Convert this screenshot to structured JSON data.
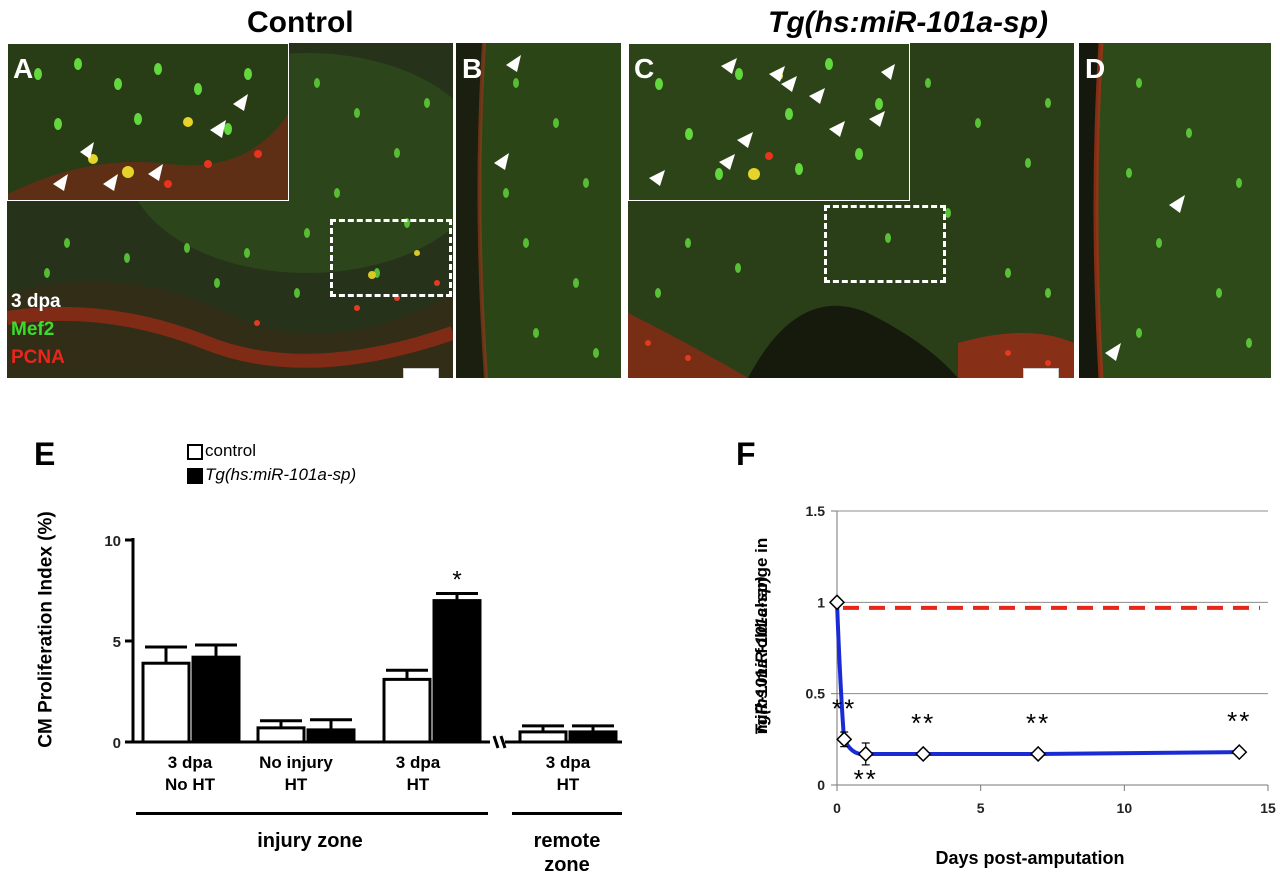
{
  "headings": {
    "control": "Control",
    "transgenic": "Tg(hs:miR-101a-sp)"
  },
  "panel_labels": {
    "a": "A",
    "b": "B",
    "c": "C",
    "d": "D",
    "e": "E",
    "f": "F"
  },
  "stain_legend": {
    "time": "3 dpa",
    "marker1": "Mef2",
    "marker2": "PCNA",
    "marker1_color": "#3ddc2c",
    "marker2_color": "#e8261c"
  },
  "chart_data": [
    {
      "type": "bar",
      "ylabel": "CM Proliferation Index (%)",
      "ylim": [
        0,
        10
      ],
      "yticks": [
        "0",
        "5",
        "10"
      ],
      "categories": [
        "3 dpa No HT",
        "No injury HT",
        "3 dpa HT",
        "3 dpa HT"
      ],
      "category_lines": [
        [
          "3 dpa",
          "No HT"
        ],
        [
          "No injury",
          "HT"
        ],
        [
          "3 dpa",
          "HT"
        ],
        [
          "3 dpa",
          "HT"
        ]
      ],
      "series": [
        {
          "name": "control",
          "values": [
            3.9,
            0.7,
            3.1,
            0.5
          ],
          "errors": [
            0.8,
            0.35,
            0.45,
            0.3
          ],
          "fill": "#ffffff"
        },
        {
          "name": "Tg(hs:miR-101a-sp)",
          "values": [
            4.2,
            0.6,
            7.0,
            0.5
          ],
          "errors": [
            0.6,
            0.5,
            0.35,
            0.3
          ],
          "fill": "#000000"
        }
      ],
      "significance": [
        "",
        "",
        "*",
        ""
      ],
      "groups": [
        {
          "label": "injury zone"
        },
        {
          "label": "remote zone"
        }
      ],
      "legend_position": "top"
    },
    {
      "type": "line",
      "xlabel": "Days post-amputation",
      "ylabel_line1": "miR-101a fold-change in",
      "ylabel_line2": "Tg(hs:miR-101a-sp)",
      "xlim": [
        0,
        15
      ],
      "ylim": [
        0,
        1.5
      ],
      "xticks": [
        "0",
        "5",
        "10",
        "15"
      ],
      "yticks": [
        "0",
        "0.5",
        "1",
        "1.5"
      ],
      "x": [
        0,
        0.25,
        1,
        3,
        7,
        14
      ],
      "y": [
        1.0,
        0.25,
        0.17,
        0.17,
        0.17,
        0.18
      ],
      "errors": [
        0,
        0.04,
        0.06,
        0.02,
        0.02,
        0.02
      ],
      "significance": [
        "",
        "**",
        "**",
        "**",
        "**",
        "**"
      ],
      "reference_line": {
        "y": 0.97,
        "color": "#e8261c",
        "style": "dashed"
      },
      "line_color": "#1a2bd6",
      "grid": true
    }
  ]
}
